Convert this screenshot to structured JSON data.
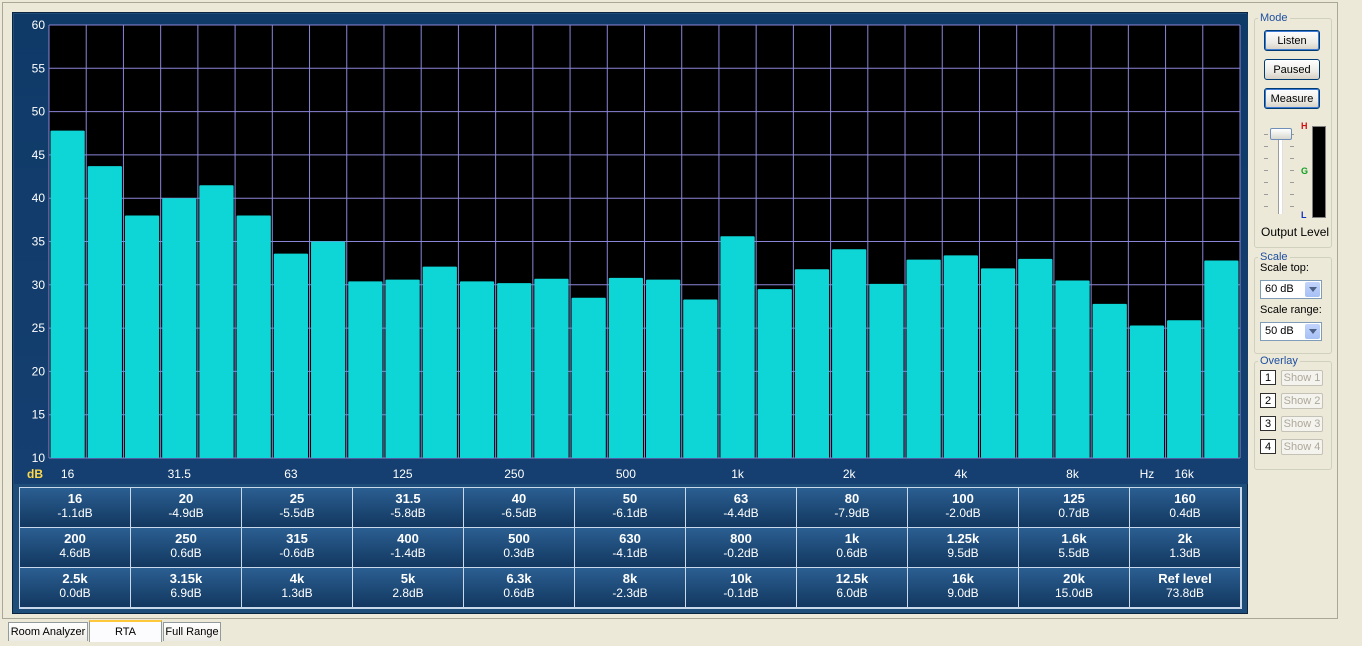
{
  "chart_data": {
    "type": "bar",
    "ylim": [
      10,
      60
    ],
    "yticks": [
      60,
      55,
      50,
      45,
      40,
      35,
      30,
      25,
      20,
      15,
      10
    ],
    "ylabel": "dB",
    "xlabel": "Hz",
    "x_tick_labels": [
      "16",
      "31.5",
      "63",
      "125",
      "250",
      "500",
      "1k",
      "2k",
      "4k",
      "8k",
      "16k"
    ],
    "categories": [
      "16",
      "20",
      "25",
      "31.5",
      "40",
      "50",
      "63",
      "80",
      "100",
      "125",
      "160",
      "200",
      "250",
      "315",
      "400",
      "500",
      "630",
      "800",
      "1k",
      "1.25k",
      "1.6k",
      "2k",
      "2.5k",
      "3.15k",
      "4k",
      "5k",
      "6.3k",
      "8k",
      "10k",
      "12.5k",
      "16k",
      "20k"
    ],
    "values": [
      47.8,
      43.7,
      38.0,
      40.0,
      41.5,
      38.0,
      33.6,
      35.0,
      30.4,
      30.6,
      32.1,
      30.4,
      30.2,
      30.7,
      28.5,
      30.8,
      30.6,
      28.3,
      35.6,
      29.5,
      31.8,
      34.1,
      30.1,
      32.9,
      33.4,
      31.9,
      33.0,
      30.5,
      27.8,
      25.3,
      25.9,
      32.8
    ],
    "bar_color": "#0ed6d6",
    "grid": true
  },
  "table": {
    "rows": [
      [
        {
          "f": "16",
          "v": "-1.1dB"
        },
        {
          "f": "20",
          "v": "-4.9dB"
        },
        {
          "f": "25",
          "v": "-5.5dB"
        },
        {
          "f": "31.5",
          "v": "-5.8dB"
        },
        {
          "f": "40",
          "v": "-6.5dB"
        },
        {
          "f": "50",
          "v": "-6.1dB"
        },
        {
          "f": "63",
          "v": "-4.4dB"
        },
        {
          "f": "80",
          "v": "-7.9dB"
        },
        {
          "f": "100",
          "v": "-2.0dB"
        },
        {
          "f": "125",
          "v": "0.7dB"
        },
        {
          "f": "160",
          "v": "0.4dB"
        }
      ],
      [
        {
          "f": "200",
          "v": "4.6dB"
        },
        {
          "f": "250",
          "v": "0.6dB"
        },
        {
          "f": "315",
          "v": "-0.6dB"
        },
        {
          "f": "400",
          "v": "-1.4dB"
        },
        {
          "f": "500",
          "v": "0.3dB"
        },
        {
          "f": "630",
          "v": "-4.1dB"
        },
        {
          "f": "800",
          "v": "-0.2dB"
        },
        {
          "f": "1k",
          "v": "0.6dB"
        },
        {
          "f": "1.25k",
          "v": "9.5dB"
        },
        {
          "f": "1.6k",
          "v": "5.5dB"
        },
        {
          "f": "2k",
          "v": "1.3dB"
        }
      ],
      [
        {
          "f": "2.5k",
          "v": "0.0dB"
        },
        {
          "f": "3.15k",
          "v": "6.9dB"
        },
        {
          "f": "4k",
          "v": "1.3dB"
        },
        {
          "f": "5k",
          "v": "2.8dB"
        },
        {
          "f": "6.3k",
          "v": "0.6dB"
        },
        {
          "f": "8k",
          "v": "-2.3dB"
        },
        {
          "f": "10k",
          "v": "-0.1dB"
        },
        {
          "f": "12.5k",
          "v": "6.0dB"
        },
        {
          "f": "16k",
          "v": "9.0dB"
        },
        {
          "f": "20k",
          "v": "15.0dB"
        },
        {
          "f": "Ref level",
          "v": "73.8dB"
        }
      ]
    ]
  },
  "mode": {
    "title": "Mode",
    "listen": "Listen",
    "paused": "Paused",
    "measure": "Measure",
    "output_level_label": "Output Level",
    "meter_labels": {
      "high": "H",
      "good": "G",
      "low": "L"
    },
    "meter_level": 0
  },
  "scale": {
    "title": "Scale",
    "top_label": "Scale top:",
    "top_value": "60 dB",
    "range_label": "Scale range:",
    "range_value": "50 dB"
  },
  "overlay": {
    "title": "Overlay",
    "items": [
      {
        "num": "1",
        "label": "Show 1"
      },
      {
        "num": "2",
        "label": "Show 2"
      },
      {
        "num": "3",
        "label": "Show 3"
      },
      {
        "num": "4",
        "label": "Show 4"
      }
    ]
  },
  "tabs": [
    "Room Analyzer",
    "RTA",
    "Full Range"
  ],
  "active_tab": "RTA",
  "colors": {
    "panel": "#1f4d7a",
    "bars": "#0ed6d6",
    "plot_bg": "#000000",
    "grid": "#8b85d8"
  }
}
